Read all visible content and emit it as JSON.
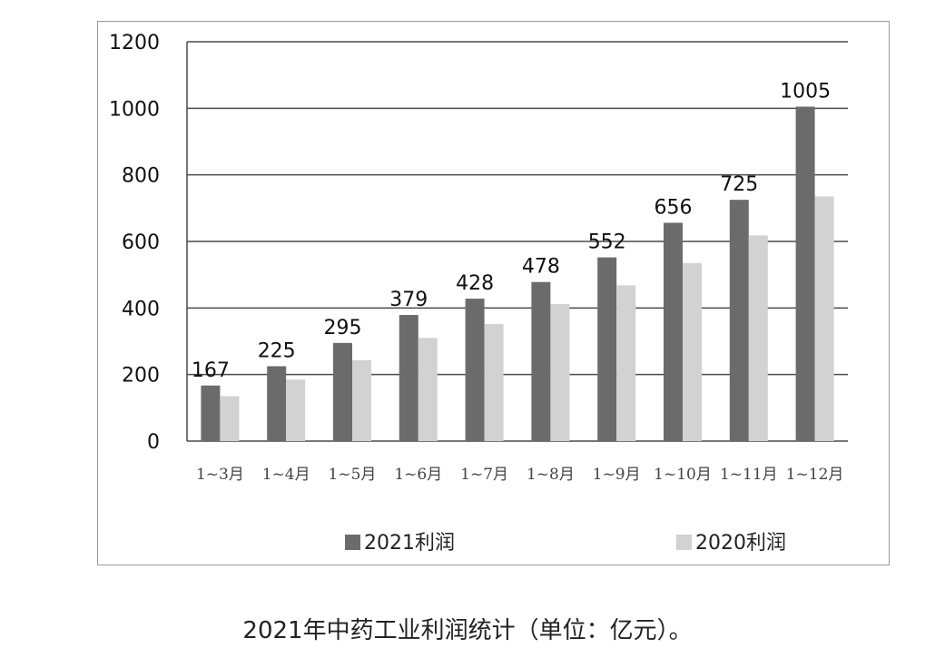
{
  "caption": "2021年中药工业利润统计（单位：亿元）。",
  "colors": {
    "s2021": "#6b6b6b",
    "s2020": "#d2d2d2",
    "grid": "#4a4a4a",
    "frame": "#9a9a9a"
  },
  "chart_data": {
    "type": "bar",
    "title": "",
    "xlabel": "",
    "ylabel": "",
    "ylim": [
      0,
      1200
    ],
    "yticks": [
      0,
      200,
      400,
      600,
      800,
      1000,
      1200
    ],
    "grid": true,
    "legend_position": "bottom",
    "categories": [
      "1~3月",
      "1~4月",
      "1~5月",
      "1~6月",
      "1~7月",
      "1~8月",
      "1~9月",
      "1~10月",
      "1~11月",
      "1~12月"
    ],
    "series": [
      {
        "name": "2021利润",
        "values": [
          167,
          225,
          295,
          379,
          428,
          478,
          552,
          656,
          725,
          1005
        ],
        "data_labels": true
      },
      {
        "name": "2020利润",
        "values": [
          135,
          185,
          243,
          310,
          352,
          412,
          468,
          535,
          618,
          735
        ],
        "data_labels": false
      }
    ]
  }
}
